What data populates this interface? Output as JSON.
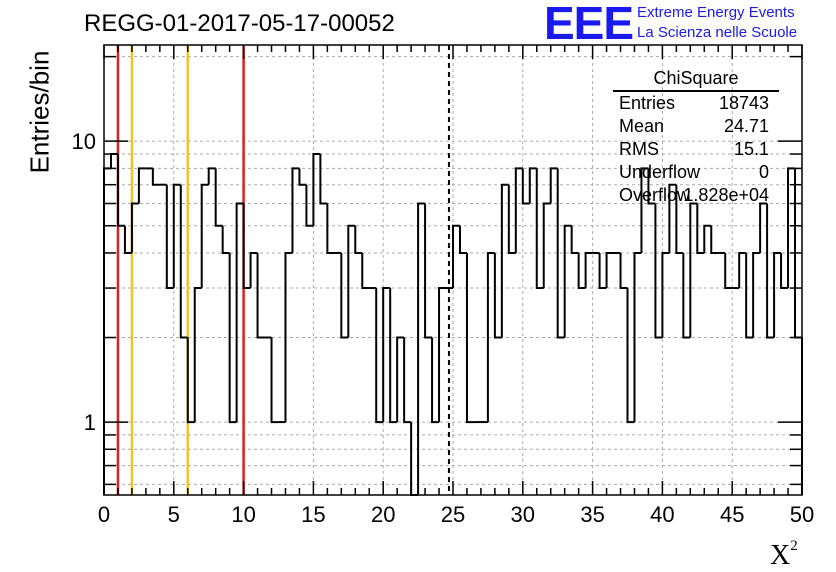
{
  "header": {
    "title": "REGG-01-2017-05-17-00052",
    "logo_text": "EEE",
    "logo_line1": "Extreme Energy Events",
    "logo_line2": "La Scienza nelle Scuole"
  },
  "stats_box": {
    "name": "ChiSquare",
    "rows": [
      {
        "key": "Entries",
        "value": "18743"
      },
      {
        "key": "Mean",
        "value": "24.71"
      },
      {
        "key": "RMS",
        "value": "15.1"
      },
      {
        "key": "Underflow",
        "value": "0"
      },
      {
        "key": "Overflow",
        "value": "1.828e+04"
      }
    ]
  },
  "chart_data": {
    "type": "histogram",
    "ylabel": "Entries/bin",
    "xlabel_base": "X",
    "xlabel_exp": "2",
    "xlim": [
      0,
      50
    ],
    "ylim": [
      0.55,
      22
    ],
    "yscale": "log",
    "bin_width": 0.5,
    "grid": true,
    "x_ticks": [
      0,
      5,
      10,
      15,
      20,
      25,
      30,
      35,
      40,
      45,
      50
    ],
    "y_ticks": [
      1,
      10
    ],
    "values": [
      8,
      9,
      5,
      4,
      6,
      8,
      8,
      7,
      7,
      3,
      7,
      2,
      1,
      3,
      7,
      8,
      5,
      4,
      1,
      6,
      3,
      4,
      2,
      2,
      1,
      1,
      4,
      8,
      7,
      5,
      9,
      6,
      4,
      4,
      2,
      5,
      4,
      3,
      3,
      1,
      3,
      1,
      2,
      1,
      0,
      6,
      2,
      1,
      3,
      3,
      5,
      4,
      1,
      1,
      1,
      4,
      2,
      7,
      4,
      8,
      6,
      8,
      3,
      6,
      8,
      2,
      5,
      4,
      3,
      4,
      4,
      3,
      4,
      4,
      3,
      1,
      4,
      8,
      6,
      2,
      4,
      7,
      4,
      2,
      6,
      4,
      5,
      4,
      4,
      3,
      3,
      4,
      2,
      4,
      6,
      2,
      4,
      3,
      8,
      2
    ],
    "color_lines": [
      {
        "x": 1,
        "color": "#dd2222"
      },
      {
        "x": 2,
        "color": "#f2c12e"
      },
      {
        "x": 6,
        "color": "#f2c12e"
      },
      {
        "x": 10,
        "color": "#dd2222"
      }
    ],
    "mean_line": {
      "x": 24.71,
      "color": "#000000"
    }
  }
}
